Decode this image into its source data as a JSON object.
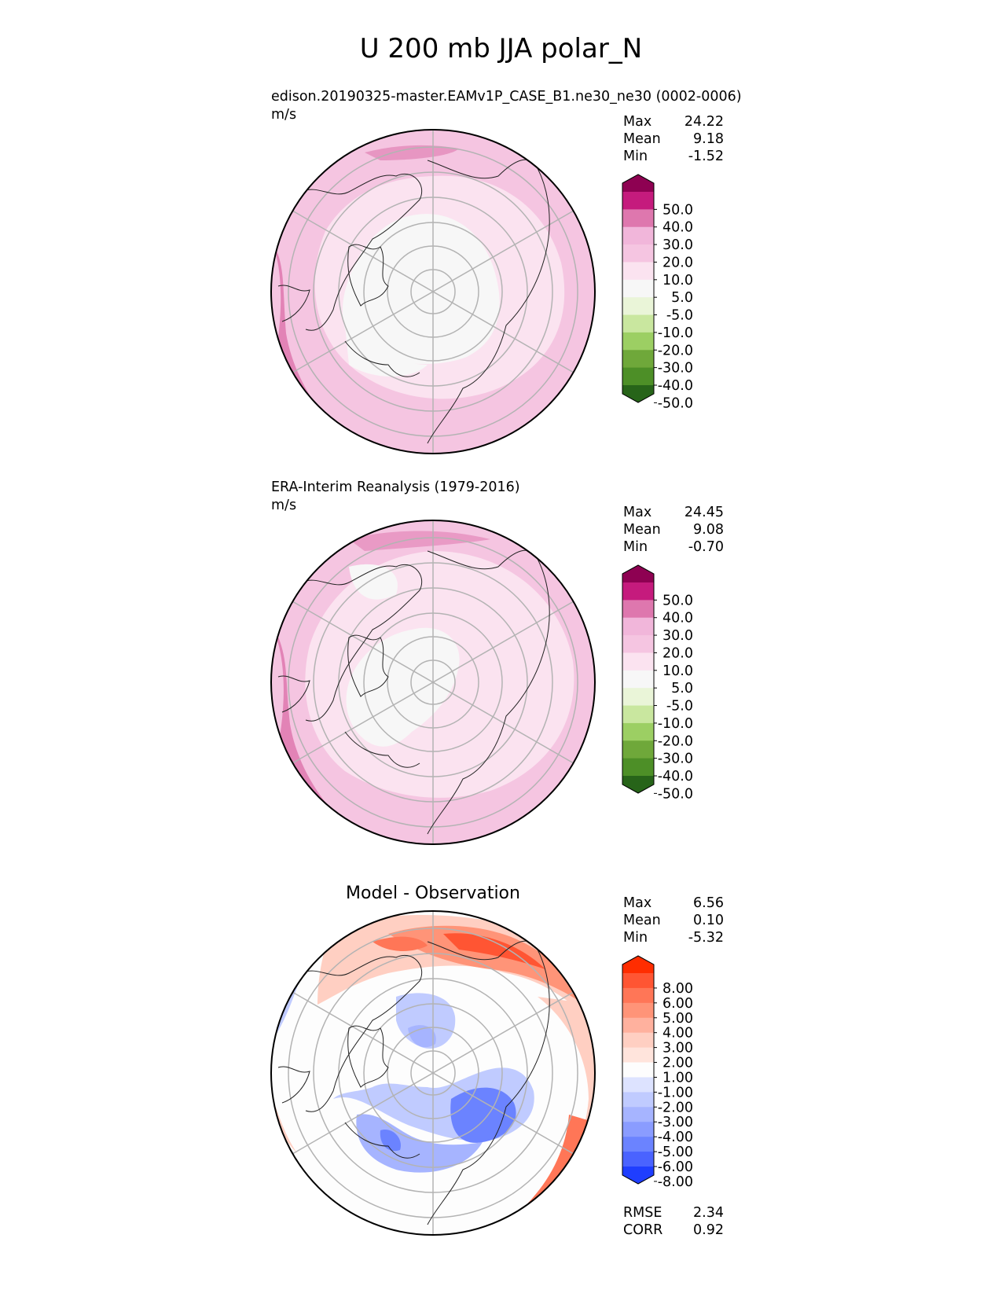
{
  "figure_title": "U 200 mb JJA polar_N",
  "panels": [
    {
      "id": "test",
      "title": "edison.20190325-master.EAMv1P_CASE_B1.ne30_ne30 (0002-0006)",
      "units": "m/s",
      "stats": {
        "max_label": "Max",
        "max": "24.22",
        "mean_label": "Mean",
        "mean": "9.18",
        "min_label": "Min",
        "min": "-1.52"
      }
    },
    {
      "id": "ref",
      "title": "ERA-Interim Reanalysis (1979-2016)",
      "units": "m/s",
      "stats": {
        "max_label": "Max",
        "max": "24.45",
        "mean_label": "Mean",
        "mean": "9.08",
        "min_label": "Min",
        "min": "-0.70"
      }
    },
    {
      "id": "diff",
      "title": "Model - Observation",
      "units": "",
      "stats": {
        "max_label": "Max",
        "max": "6.56",
        "mean_label": "Mean",
        "mean": "0.10",
        "min_label": "Min",
        "min": "-5.32"
      },
      "metrics": {
        "rmse_label": "RMSE",
        "rmse": "2.34",
        "corr_label": "CORR",
        "corr": "0.92"
      }
    }
  ],
  "chart_data": [
    {
      "type": "heatmap",
      "projection": "north polar stereographic",
      "title": "edison.20190325-master.EAMv1P_CASE_B1.ne30_ne30 (0002-0006)",
      "units": "m/s",
      "colorbar_ticks": [
        "50.0",
        "40.0",
        "30.0",
        "20.0",
        "10.0",
        "5.0",
        "-5.0",
        "-10.0",
        "-20.0",
        "-30.0",
        "-40.0",
        "-50.0"
      ],
      "colorbar_colors": [
        "#8e0152",
        "#c51b7d",
        "#de77ae",
        "#f1b6da",
        "#f5c5e1",
        "#fbe3f0",
        "#f7f7f7",
        "#eaf5d8",
        "#c9e79f",
        "#9ccf63",
        "#6fa83a",
        "#4d8f27",
        "#276419"
      ],
      "max": 24.22,
      "mean": 9.18,
      "min": -1.52
    },
    {
      "type": "heatmap",
      "projection": "north polar stereographic",
      "title": "ERA-Interim Reanalysis (1979-2016)",
      "units": "m/s",
      "colorbar_ticks": [
        "50.0",
        "40.0",
        "30.0",
        "20.0",
        "10.0",
        "5.0",
        "-5.0",
        "-10.0",
        "-20.0",
        "-30.0",
        "-40.0",
        "-50.0"
      ],
      "colorbar_colors": [
        "#8e0152",
        "#c51b7d",
        "#de77ae",
        "#f1b6da",
        "#f5c5e1",
        "#fbe3f0",
        "#f7f7f7",
        "#eaf5d8",
        "#c9e79f",
        "#9ccf63",
        "#6fa83a",
        "#4d8f27",
        "#276419"
      ],
      "max": 24.45,
      "mean": 9.08,
      "min": -0.7
    },
    {
      "type": "heatmap",
      "projection": "north polar stereographic",
      "title": "Model - Observation",
      "units": "",
      "colorbar_ticks": [
        "8.00",
        "6.00",
        "5.00",
        "4.00",
        "3.00",
        "2.00",
        "1.00",
        "-1.00",
        "-2.00",
        "-3.00",
        "-4.00",
        "-5.00",
        "-6.00",
        "-8.00"
      ],
      "colorbar_colors": [
        "#ff2d00",
        "#ff5533",
        "#ff7657",
        "#ff9478",
        "#ffb19e",
        "#ffcfc2",
        "#ffe4dc",
        "#fdfdfd",
        "#dde3ff",
        "#c0cbff",
        "#a6b4ff",
        "#8a9cff",
        "#6b83ff",
        "#4a63ff",
        "#1f3eff"
      ],
      "max": 6.56,
      "mean": 0.1,
      "min": -5.32,
      "rmse": 2.34,
      "corr": 0.92
    }
  ]
}
